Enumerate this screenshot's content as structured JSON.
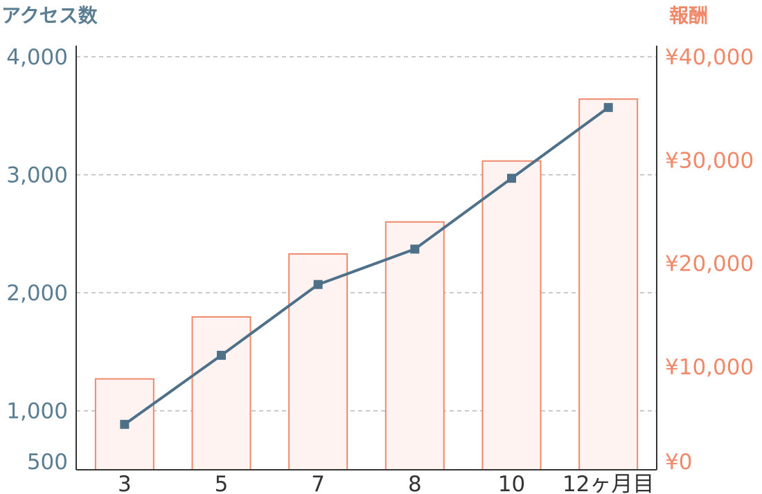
{
  "chart_data": {
    "type": "bar",
    "categories": [
      "3",
      "5",
      "7",
      "8",
      "10",
      "12ヶ月目"
    ],
    "series": [
      {
        "type": "bar",
        "axis": "right",
        "values": [
          8800,
          14800,
          20900,
          24000,
          29900,
          35900
        ]
      },
      {
        "type": "line",
        "axis": "left",
        "values": [
          885,
          1470,
          2070,
          2370,
          2970,
          3570
        ]
      }
    ],
    "left_axis": {
      "title": "アクセス数",
      "range": [
        500,
        4000
      ],
      "ticks": [
        500,
        1000,
        2000,
        3000,
        4000
      ],
      "tick_labels": [
        "500",
        "1,000",
        "2,000",
        "3,000",
        "4,000"
      ]
    },
    "right_axis": {
      "title": "報酬",
      "range": [
        0,
        40000
      ],
      "ticks": [
        0,
        10000,
        20000,
        30000,
        40000
      ],
      "tick_labels": [
        "¥0",
        "¥10,000",
        "¥20,000",
        "¥30,000",
        "¥40,000"
      ]
    },
    "grid": true,
    "colors": {
      "line": "#4e7088",
      "bar_fill": "#fef3f1",
      "bar_stroke": "#f0886a",
      "left_text": "#5a7d92",
      "right_text": "#f0886a",
      "grid": "#b8b8b8",
      "axis": "#333333"
    }
  }
}
